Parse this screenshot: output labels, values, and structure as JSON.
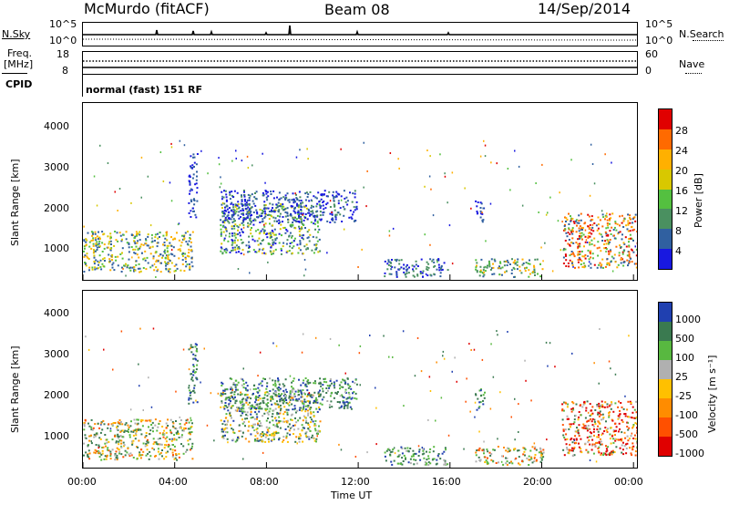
{
  "header": {
    "station": "McMurdo (fitACF)",
    "beam": "Beam 08",
    "date": "14/Sep/2014"
  },
  "top_panels": {
    "nsky_label": "N.Sky",
    "nsearch_label": "N.Search",
    "nsky_ticks": [
      "10^5",
      "10^0"
    ],
    "nsearch_ticks": [
      "10^5",
      "10^0"
    ],
    "freq_label_1": "Freq.",
    "freq_label_2": "[MHz]",
    "freq_ticks": [
      "18",
      "8"
    ],
    "nave_label": "Nave",
    "nave_ticks": [
      "60",
      "0"
    ],
    "cpid_label": "CPID",
    "cpid_value": "normal (fast) 151 RF"
  },
  "chart_data": [
    {
      "type": "heatmap",
      "name": "power",
      "ylabel": "Slant Range [km]",
      "ylim": [
        200,
        4600
      ],
      "yticks": [
        "1000",
        "2000",
        "3000",
        "4000"
      ],
      "colorbar_label": "Power [dB]",
      "colorbar_ticks": [
        "28",
        "24",
        "20",
        "16",
        "12",
        "8",
        "4"
      ],
      "colors": [
        "#e00000",
        "#ff6a00",
        "#ffb000",
        "#d8c800",
        "#54c040",
        "#4a9060",
        "#3060a0",
        "#1818e0"
      ]
    },
    {
      "type": "heatmap",
      "name": "velocity",
      "ylabel": "Slant Range [km]",
      "xlabel": "Time UT",
      "ylim": [
        200,
        4600
      ],
      "yticks": [
        "1000",
        "2000",
        "3000",
        "4000"
      ],
      "xticks": [
        "00:00",
        "04:00",
        "08:00",
        "12:00",
        "16:00",
        "20:00",
        "00:00"
      ],
      "colorbar_label": "Velocity [m s⁻¹]",
      "colorbar_ticks": [
        "1000",
        "500",
        "100",
        "25",
        "-25",
        "-100",
        "-500",
        "-1000"
      ],
      "colors": [
        "#2040b0",
        "#3a7a50",
        "#58b840",
        "#b0b0b0",
        "#ffc000",
        "#ff8c00",
        "#ff5000",
        "#e00000"
      ]
    }
  ]
}
